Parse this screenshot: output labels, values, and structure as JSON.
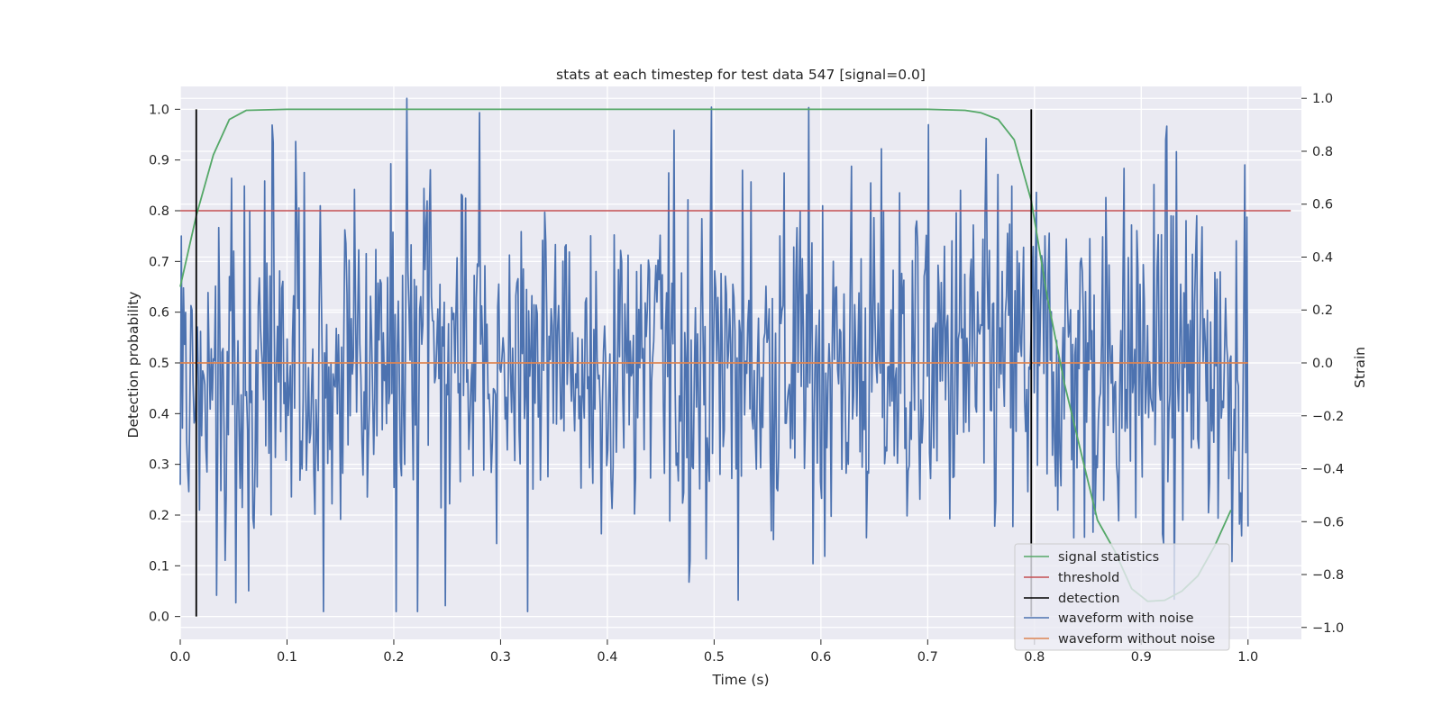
{
  "chart_data": {
    "type": "line",
    "title": "stats at each timestep for test data 547 [signal=0.0]",
    "xlabel": "Time (s)",
    "ylabel": "Detection probability",
    "y2label": "Strain",
    "xlim": [
      0.0,
      1.05
    ],
    "ylim": [
      -0.045,
      1.045
    ],
    "y2lim": [
      -1.045,
      1.045
    ],
    "xticks": [
      "0.0",
      "0.1",
      "0.2",
      "0.3",
      "0.4",
      "0.5",
      "0.6",
      "0.7",
      "0.8",
      "0.9",
      "1.0"
    ],
    "yticks": [
      "0.0",
      "0.1",
      "0.2",
      "0.3",
      "0.4",
      "0.5",
      "0.6",
      "0.7",
      "0.8",
      "0.9",
      "1.0"
    ],
    "y2ticks": [
      "−1.0",
      "−0.8",
      "−0.6",
      "−0.4",
      "−0.2",
      "0.0",
      "0.2",
      "0.4",
      "0.6",
      "0.8",
      "1.0"
    ],
    "grid": true,
    "legend_position": "lower-right",
    "colors": {
      "signal_statistics": "#55a868",
      "threshold": "#c44e52",
      "detection": "#000000",
      "waveform_with_noise": "#4c72b0",
      "waveform_without_noise": "#dd8452",
      "background": "#eaeaf2",
      "grid": "#ffffff"
    },
    "series": [
      {
        "name": "signal statistics",
        "axis": "left",
        "x": [
          0.0,
          0.015,
          0.031,
          0.046,
          0.062,
          0.1,
          0.3,
          0.5,
          0.7,
          0.735,
          0.75,
          0.766,
          0.781,
          0.797,
          0.812,
          0.828,
          0.844,
          0.859,
          0.875,
          0.891,
          0.906,
          0.922,
          0.938,
          0.953,
          0.969,
          0.984
        ],
        "y": [
          0.65,
          0.79,
          0.91,
          0.98,
          0.998,
          1.0,
          1.0,
          1.0,
          1.0,
          0.998,
          0.993,
          0.98,
          0.94,
          0.82,
          0.63,
          0.46,
          0.32,
          0.19,
          0.13,
          0.055,
          0.03,
          0.032,
          0.05,
          0.08,
          0.14,
          0.21
        ]
      },
      {
        "name": "threshold",
        "axis": "left",
        "x": [
          0.0,
          1.04
        ],
        "y": [
          0.8,
          0.8
        ]
      },
      {
        "name": "detection",
        "axis": "left",
        "segments": [
          {
            "x": 0.015,
            "y": [
              0.0,
              1.0
            ]
          },
          {
            "x": 0.797,
            "y": [
              0.0,
              1.0
            ]
          }
        ]
      },
      {
        "name": "waveform with noise",
        "axis": "right",
        "x_range": [
          0.0,
          1.0
        ],
        "n_points": 1000,
        "y_range_observed": [
          -0.94,
          1.0
        ],
        "note_values": "dense noise samples, std approx 0.35 strain"
      },
      {
        "name": "waveform without noise",
        "axis": "right",
        "x": [
          0.0,
          1.0
        ],
        "y": [
          0.0,
          0.0
        ]
      }
    ]
  }
}
